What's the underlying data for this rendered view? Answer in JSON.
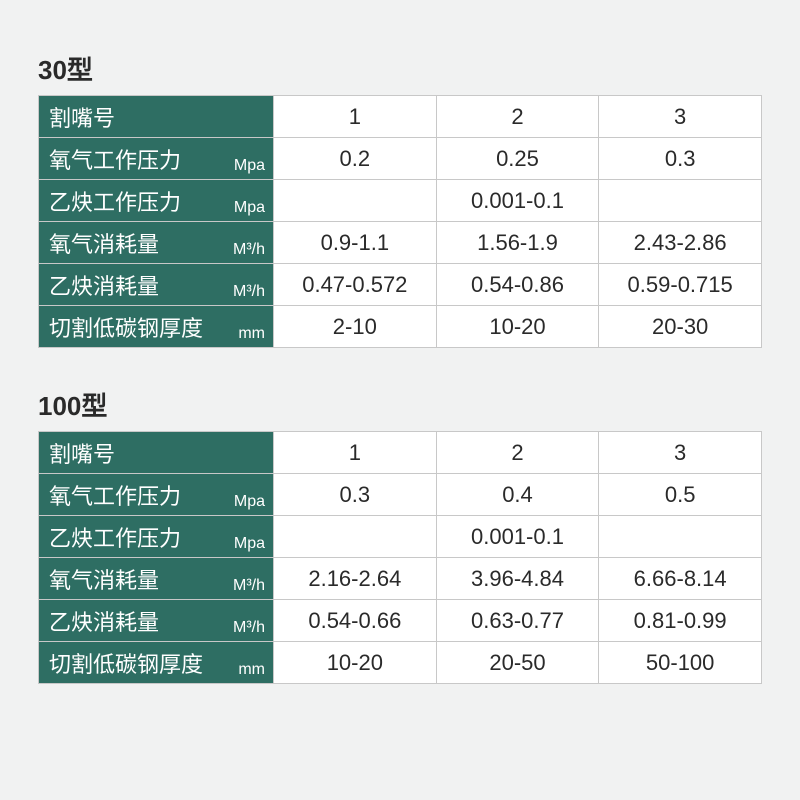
{
  "colors": {
    "page_bg": "#f1f2f2",
    "header_bg": "#2e6e63",
    "header_text": "#ffffff",
    "cell_bg": "#ffffff",
    "cell_text": "#2a2a2a",
    "border": "#c8c8c8"
  },
  "typography": {
    "title_fontsize": 26,
    "label_fontsize": 22,
    "unit_fontsize": 16,
    "cell_fontsize": 22
  },
  "tables": [
    {
      "title": "30型",
      "rows": [
        {
          "label": "割嘴号",
          "unit": "",
          "cells": [
            "1",
            "2",
            "3"
          ]
        },
        {
          "label": "氧气工作压力",
          "unit": "Mpa",
          "cells": [
            "0.2",
            "0.25",
            "0.3"
          ]
        },
        {
          "label": "乙炔工作压力",
          "unit": "Mpa",
          "span": true,
          "cells": [
            "0.001-0.1"
          ]
        },
        {
          "label": "氧气消耗量",
          "unit": "M³/h",
          "cells": [
            "0.9-1.1",
            "1.56-1.9",
            "2.43-2.86"
          ]
        },
        {
          "label": "乙炔消耗量",
          "unit": "M³/h",
          "cells": [
            "0.47-0.572",
            "0.54-0.86",
            "0.59-0.715"
          ]
        },
        {
          "label": "切割低碳钢厚度",
          "unit": "mm",
          "cells": [
            "2-10",
            "10-20",
            "20-30"
          ]
        }
      ]
    },
    {
      "title": "100型",
      "rows": [
        {
          "label": "割嘴号",
          "unit": "",
          "cells": [
            "1",
            "2",
            "3"
          ]
        },
        {
          "label": "氧气工作压力",
          "unit": "Mpa",
          "cells": [
            "0.3",
            "0.4",
            "0.5"
          ]
        },
        {
          "label": "乙炔工作压力",
          "unit": "Mpa",
          "span": true,
          "cells": [
            "0.001-0.1"
          ]
        },
        {
          "label": "氧气消耗量",
          "unit": "M³/h",
          "cells": [
            "2.16-2.64",
            "3.96-4.84",
            "6.66-8.14"
          ]
        },
        {
          "label": "乙炔消耗量",
          "unit": "M³/h",
          "cells": [
            "0.54-0.66",
            "0.63-0.77",
            "0.81-0.99"
          ]
        },
        {
          "label": "切割低碳钢厚度",
          "unit": "mm",
          "cells": [
            "10-20",
            "20-50",
            "50-100"
          ]
        }
      ]
    }
  ]
}
